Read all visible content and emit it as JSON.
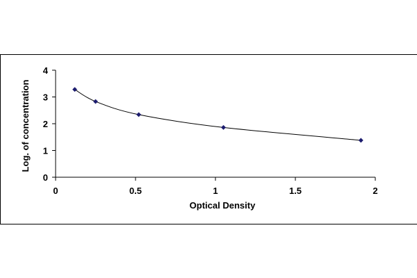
{
  "chart_data": {
    "type": "scatter",
    "title": "",
    "xlabel": "Optical Density",
    "ylabel": "Log. of concentration",
    "xlim": [
      0,
      2
    ],
    "ylim": [
      0,
      4
    ],
    "x_ticks": [
      "0",
      "0.5",
      "1",
      "1.5",
      "2"
    ],
    "y_ticks": [
      "0",
      "1",
      "2",
      "3",
      "4"
    ],
    "grid": false,
    "legend": "none",
    "series": [
      {
        "x": [
          0.12,
          0.25,
          0.52,
          1.05,
          1.91
        ],
        "y": [
          3.28,
          2.83,
          2.34,
          1.86,
          1.38
        ],
        "marker": "diamond",
        "fit_line": "smooth"
      }
    ],
    "colors": {
      "marker": "#1c1c6e",
      "line": "#000000"
    }
  }
}
